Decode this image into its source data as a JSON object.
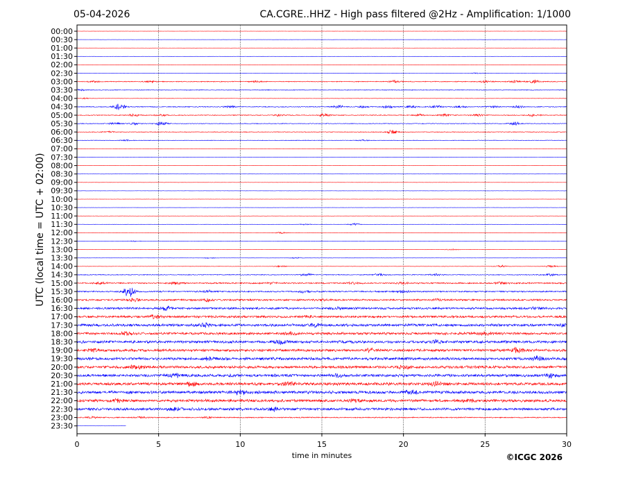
{
  "chart_data": {
    "type": "line",
    "date": "05-04-2026",
    "title": "CA.CGRE..HHZ - High pass filtered @2Hz - Amplification: 1/1000",
    "xlabel": "time in minutes",
    "ylabel": "UTC (local time = UTC + 02:00)",
    "credit": "©ICGC 2026",
    "xlim": [
      0,
      30
    ],
    "x_ticks": [
      "0",
      "5",
      "10",
      "15",
      "20",
      "25",
      "30"
    ],
    "x_tick_values": [
      0,
      5,
      10,
      15,
      20,
      25,
      30
    ],
    "grid": "vertical dotted at 5-minute intervals",
    "colors": {
      "even_rows": "#ff0000",
      "odd_rows": "#0000ff",
      "frame": "#000000"
    },
    "rows": [
      {
        "label": "00:00",
        "noise": 0.02,
        "bursts": []
      },
      {
        "label": "00:30",
        "noise": 0.02,
        "bursts": []
      },
      {
        "label": "01:00",
        "noise": 0.02,
        "bursts": []
      },
      {
        "label": "01:30",
        "noise": 0.03,
        "bursts": []
      },
      {
        "label": "02:00",
        "noise": 0.02,
        "bursts": []
      },
      {
        "label": "02:30",
        "noise": 0.03,
        "bursts": [
          [
            24.5,
            0.15
          ]
        ]
      },
      {
        "label": "03:00",
        "noise": 0.12,
        "bursts": [
          [
            1,
            0.2
          ],
          [
            4.5,
            0.2
          ],
          [
            11,
            0.2
          ],
          [
            19.5,
            0.35
          ],
          [
            25,
            0.2
          ],
          [
            26.8,
            0.3
          ],
          [
            28,
            0.4
          ]
        ]
      },
      {
        "label": "03:30",
        "noise": 0.1,
        "bursts": [
          [
            0.2,
            0.2
          ]
        ]
      },
      {
        "label": "04:00",
        "noise": 0.05,
        "bursts": [
          [
            0.5,
            0.15
          ]
        ]
      },
      {
        "label": "04:30",
        "noise": 0.12,
        "bursts": [
          [
            2.6,
            0.9
          ],
          [
            9.4,
            0.3
          ],
          [
            16,
            0.4
          ],
          [
            17.5,
            0.3
          ],
          [
            19,
            0.4
          ],
          [
            20.5,
            0.3
          ],
          [
            22,
            0.4
          ],
          [
            23.5,
            0.3
          ],
          [
            25.5,
            0.3
          ],
          [
            27,
            0.3
          ]
        ]
      },
      {
        "label": "05:00",
        "noise": 0.12,
        "bursts": [
          [
            3.5,
            0.3
          ],
          [
            5.2,
            0.3
          ],
          [
            12.5,
            0.3
          ],
          [
            15.2,
            0.4
          ],
          [
            21,
            0.3
          ],
          [
            22.5,
            0.3
          ],
          [
            24.5,
            0.3
          ],
          [
            28,
            0.3
          ]
        ]
      },
      {
        "label": "05:30",
        "noise": 0.1,
        "bursts": [
          [
            2.3,
            0.3
          ],
          [
            3.5,
            0.3
          ],
          [
            5.2,
            0.5
          ],
          [
            26.8,
            0.5
          ]
        ]
      },
      {
        "label": "06:00",
        "noise": 0.1,
        "bursts": [
          [
            2,
            0.2
          ],
          [
            19.3,
            0.6
          ]
        ]
      },
      {
        "label": "06:30",
        "noise": 0.08,
        "bursts": [
          [
            3,
            0.2
          ],
          [
            17.5,
            0.2
          ]
        ]
      },
      {
        "label": "07:00",
        "noise": 0.03,
        "bursts": []
      },
      {
        "label": "07:30",
        "noise": 0.03,
        "bursts": []
      },
      {
        "label": "08:00",
        "noise": 0.03,
        "bursts": []
      },
      {
        "label": "08:30",
        "noise": 0.03,
        "bursts": []
      },
      {
        "label": "09:00",
        "noise": 0.03,
        "bursts": []
      },
      {
        "label": "09:30",
        "noise": 0.03,
        "bursts": []
      },
      {
        "label": "10:00",
        "noise": 0.03,
        "bursts": []
      },
      {
        "label": "10:30",
        "noise": 0.03,
        "bursts": []
      },
      {
        "label": "11:00",
        "noise": 0.03,
        "bursts": []
      },
      {
        "label": "11:30",
        "noise": 0.04,
        "bursts": [
          [
            14,
            0.2
          ],
          [
            17,
            0.3
          ]
        ]
      },
      {
        "label": "12:00",
        "noise": 0.04,
        "bursts": [
          [
            12.5,
            0.2
          ]
        ]
      },
      {
        "label": "12:30",
        "noise": 0.03,
        "bursts": [
          [
            3.5,
            0.15
          ]
        ]
      },
      {
        "label": "13:00",
        "noise": 0.04,
        "bursts": [
          [
            23,
            0.2
          ]
        ]
      },
      {
        "label": "13:30",
        "noise": 0.04,
        "bursts": [
          [
            8.2,
            0.15
          ],
          [
            13.5,
            0.2
          ]
        ]
      },
      {
        "label": "14:00",
        "noise": 0.05,
        "bursts": [
          [
            12.5,
            0.2
          ],
          [
            26,
            0.3
          ],
          [
            29,
            0.3
          ]
        ]
      },
      {
        "label": "14:30",
        "noise": 0.12,
        "bursts": [
          [
            14,
            0.4
          ],
          [
            18.5,
            0.4
          ],
          [
            22,
            0.3
          ],
          [
            29,
            0.3
          ]
        ]
      },
      {
        "label": "15:00",
        "noise": 0.2,
        "bursts": [
          [
            1.5,
            0.3
          ],
          [
            6,
            0.3
          ],
          [
            12,
            0.3
          ],
          [
            17,
            0.3
          ],
          [
            20,
            0.3
          ],
          [
            26,
            0.4
          ]
        ]
      },
      {
        "label": "15:30",
        "noise": 0.2,
        "bursts": [
          [
            3.2,
            1.4
          ],
          [
            8,
            0.3
          ],
          [
            14,
            0.3
          ],
          [
            20,
            0.3
          ]
        ]
      },
      {
        "label": "16:00",
        "noise": 0.25,
        "bursts": [
          [
            3.5,
            0.4
          ],
          [
            8,
            0.4
          ],
          [
            15,
            0.3
          ],
          [
            22,
            0.3
          ]
        ]
      },
      {
        "label": "16:30",
        "noise": 0.3,
        "bursts": [
          [
            5.5,
            0.4
          ],
          [
            16,
            0.3
          ],
          [
            28,
            0.3
          ]
        ]
      },
      {
        "label": "17:00",
        "noise": 0.32,
        "bursts": [
          [
            4.8,
            0.4
          ],
          [
            14,
            0.3
          ]
        ]
      },
      {
        "label": "17:30",
        "noise": 0.38,
        "bursts": [
          [
            7.8,
            0.5
          ],
          [
            14.5,
            0.5
          ],
          [
            30,
            0.5
          ]
        ]
      },
      {
        "label": "18:00",
        "noise": 0.35,
        "bursts": [
          [
            3,
            0.4
          ],
          [
            13,
            0.4
          ],
          [
            25,
            0.4
          ]
        ]
      },
      {
        "label": "18:30",
        "noise": 0.38,
        "bursts": [
          [
            12.5,
            0.5
          ],
          [
            22,
            0.4
          ]
        ]
      },
      {
        "label": "19:00",
        "noise": 0.38,
        "bursts": [
          [
            1,
            0.4
          ],
          [
            18,
            0.4
          ],
          [
            27,
            0.5
          ]
        ]
      },
      {
        "label": "19:30",
        "noise": 0.4,
        "bursts": [
          [
            8,
            0.5
          ],
          [
            28.2,
            0.7
          ]
        ]
      },
      {
        "label": "20:00",
        "noise": 0.38,
        "bursts": [
          [
            3.6,
            0.6
          ],
          [
            20,
            0.4
          ]
        ]
      },
      {
        "label": "20:30",
        "noise": 0.4,
        "bursts": [
          [
            6,
            0.4
          ],
          [
            16,
            0.4
          ],
          [
            29,
            0.4
          ]
        ]
      },
      {
        "label": "21:00",
        "noise": 0.42,
        "bursts": [
          [
            7,
            0.5
          ],
          [
            13,
            0.5
          ],
          [
            22,
            0.4
          ]
        ]
      },
      {
        "label": "21:30",
        "noise": 0.42,
        "bursts": [
          [
            10,
            0.5
          ],
          [
            20.5,
            0.6
          ]
        ]
      },
      {
        "label": "22:00",
        "noise": 0.4,
        "bursts": [
          [
            2.5,
            0.4
          ],
          [
            17,
            0.4
          ],
          [
            24,
            0.4
          ]
        ]
      },
      {
        "label": "22:30",
        "noise": 0.38,
        "bursts": [
          [
            6,
            0.4
          ],
          [
            12,
            0.4
          ]
        ]
      },
      {
        "label": "23:00",
        "noise": 0.15,
        "bursts": [
          [
            1,
            0.2
          ],
          [
            4,
            0.2
          ],
          [
            8,
            0.2
          ]
        ]
      },
      {
        "label": "23:30",
        "noise": 0.02,
        "bursts": [],
        "end_x": 3.0
      }
    ]
  }
}
